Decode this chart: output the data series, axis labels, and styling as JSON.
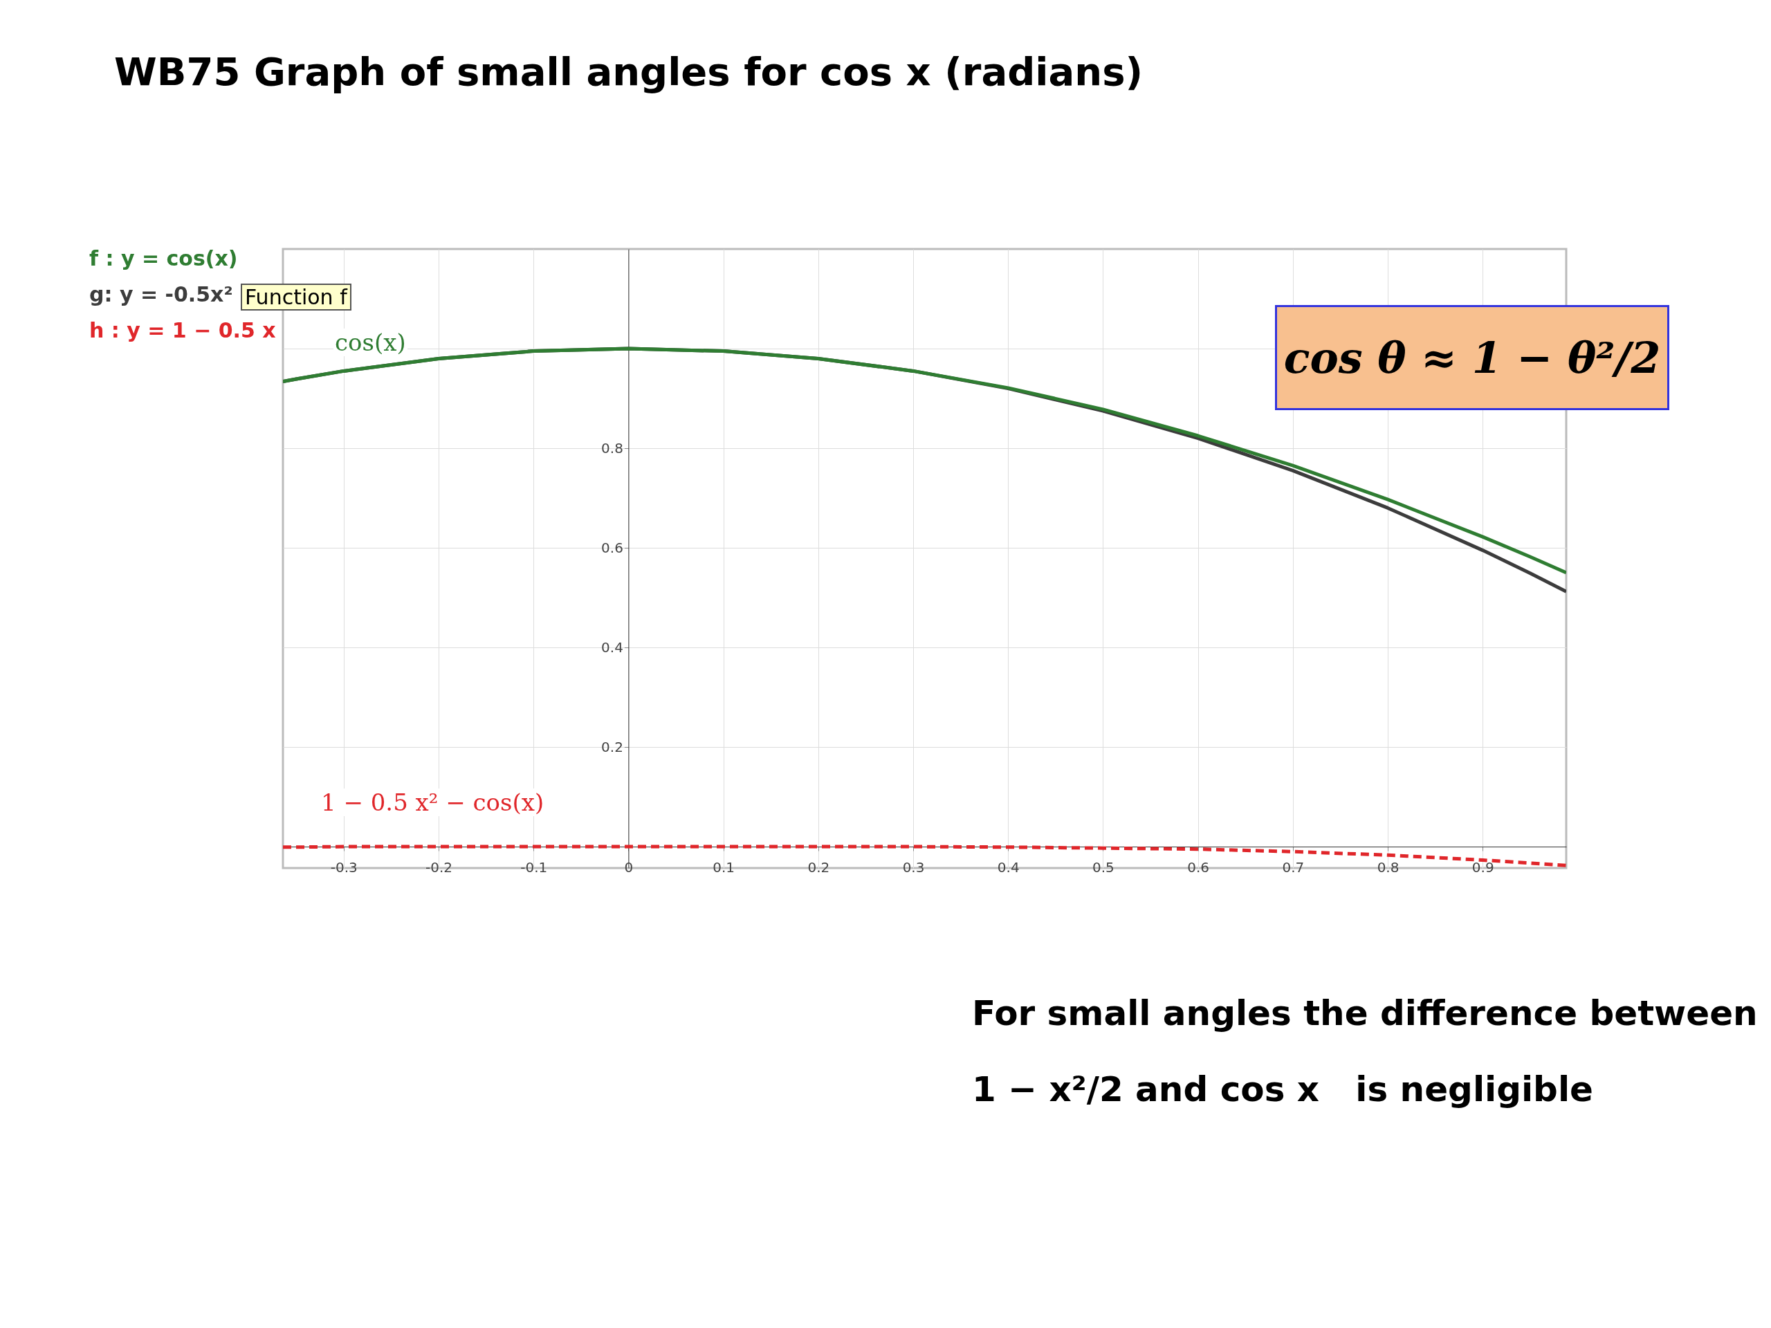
{
  "chart_data": {
    "type": "line",
    "title": "WB75   Graph of small angles for cos x (radians)",
    "x": [
      -0.364,
      -0.35,
      -0.3,
      -0.2,
      -0.1,
      0,
      0.1,
      0.2,
      0.3,
      0.4,
      0.5,
      0.6,
      0.7,
      0.8,
      0.9,
      0.95,
      0.988
    ],
    "series": [
      {
        "name": "f : y = cos(x)",
        "color": "#2f7d32",
        "type": "line",
        "line_style": "solid",
        "values": [
          0.934,
          0.939,
          0.955,
          0.98,
          0.995,
          1,
          0.995,
          0.98,
          0.955,
          0.921,
          0.878,
          0.825,
          0.765,
          0.697,
          0.622,
          0.582,
          0.55
        ]
      },
      {
        "name": "g: y = -0.5x²",
        "color": "#3c3c3c",
        "type": "line",
        "line_style": "solid",
        "values": [
          0.934,
          0.939,
          0.955,
          0.98,
          0.995,
          1,
          0.995,
          0.98,
          0.955,
          0.92,
          0.875,
          0.82,
          0.755,
          0.68,
          0.595,
          0.549,
          0.512
        ]
      },
      {
        "name": "h : y = 1 − 0.5 x",
        "color": "#e0262a",
        "type": "line",
        "line_style": "dashed",
        "values": [
          -0.001,
          -0.001,
          0,
          0,
          0,
          0,
          0,
          0,
          0,
          -0.001,
          -0.003,
          -0.005,
          -0.01,
          -0.017,
          -0.027,
          -0.033,
          -0.038
        ]
      }
    ],
    "xlim": [
      -0.364,
      0.988
    ],
    "ylim": [
      -0.043,
      1.2
    ],
    "xticks": [
      -0.3,
      -0.2,
      -0.1,
      0,
      0.1,
      0.2,
      0.3,
      0.4,
      0.5,
      0.6,
      0.7,
      0.8,
      0.9
    ],
    "yticks": [
      0.2,
      0.4,
      0.6,
      0.8,
      {
        "value": 1,
        "label": null
      }
    ],
    "grid": true,
    "legend": "left",
    "annotations": [
      "cos(x)",
      "1 − 0.5 x² − cos(x)",
      "Function f",
      "cos θ ≈ 1 − θ²/2",
      "For small angles the difference between 1 − x²/2 and cos x   is negligible"
    ]
  }
}
